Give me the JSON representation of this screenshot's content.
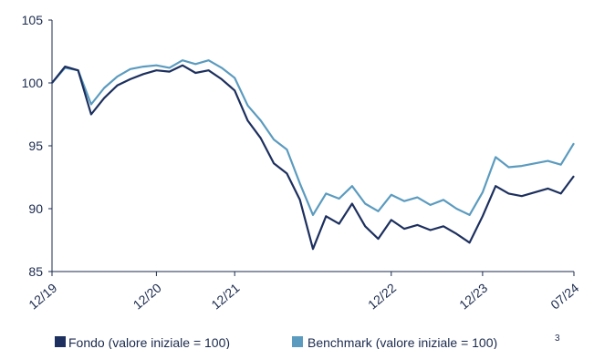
{
  "chart_data": {
    "type": "line",
    "title": "",
    "xlabel": "",
    "ylabel": "",
    "ylim": [
      85,
      105
    ],
    "y_ticks": [
      "85",
      "90",
      "95",
      "100",
      "105"
    ],
    "x_tick_labels": [
      "12/19",
      "12/20",
      "12/21",
      "12/22",
      "12/23",
      "07/24"
    ],
    "grid": false,
    "legend_position": "bottom",
    "x": [
      "12/19",
      "01/20",
      "02/20",
      "03/20",
      "04/20",
      "06/20",
      "08/20",
      "10/20",
      "12/20",
      "02/21",
      "04/21",
      "06/21",
      "08/21",
      "10/21",
      "12/21",
      "01/22",
      "02/22",
      "03/22",
      "04/22",
      "05/22",
      "06/22",
      "07/22",
      "08/22",
      "09/22",
      "10/22",
      "11/22",
      "12/22",
      "02/23",
      "04/23",
      "06/23",
      "08/23",
      "10/23",
      "11/23",
      "12/23",
      "01/24",
      "02/24",
      "03/24",
      "04/24",
      "05/24",
      "06/24",
      "07/24"
    ],
    "series": [
      {
        "name": "Fondo (valore iniziale = 100)",
        "color": "#1c2f5e",
        "values": [
          100.0,
          101.3,
          101.0,
          97.5,
          98.8,
          99.8,
          100.3,
          100.7,
          101.0,
          100.9,
          101.4,
          100.8,
          101.0,
          100.3,
          99.4,
          97.0,
          95.6,
          93.6,
          92.8,
          90.7,
          86.8,
          89.4,
          88.8,
          90.4,
          88.6,
          87.6,
          89.1,
          88.4,
          88.7,
          88.3,
          88.6,
          88.0,
          87.3,
          89.4,
          91.8,
          91.2,
          91.0,
          91.3,
          91.6,
          91.2,
          92.6
        ]
      },
      {
        "name": "Benchmark (valore iniziale = 100)",
        "color": "#5b9bbf",
        "values": [
          100.0,
          101.2,
          101.0,
          98.3,
          99.6,
          100.5,
          101.1,
          101.3,
          101.4,
          101.2,
          101.8,
          101.5,
          101.8,
          101.2,
          100.4,
          98.2,
          97.0,
          95.5,
          94.7,
          92.0,
          89.5,
          91.2,
          90.8,
          91.8,
          90.4,
          89.8,
          91.1,
          90.6,
          90.9,
          90.3,
          90.7,
          90.0,
          89.5,
          91.3,
          94.1,
          93.3,
          93.4,
          93.6,
          93.8,
          93.5,
          95.2
        ]
      }
    ],
    "legend_superscript": "3"
  }
}
